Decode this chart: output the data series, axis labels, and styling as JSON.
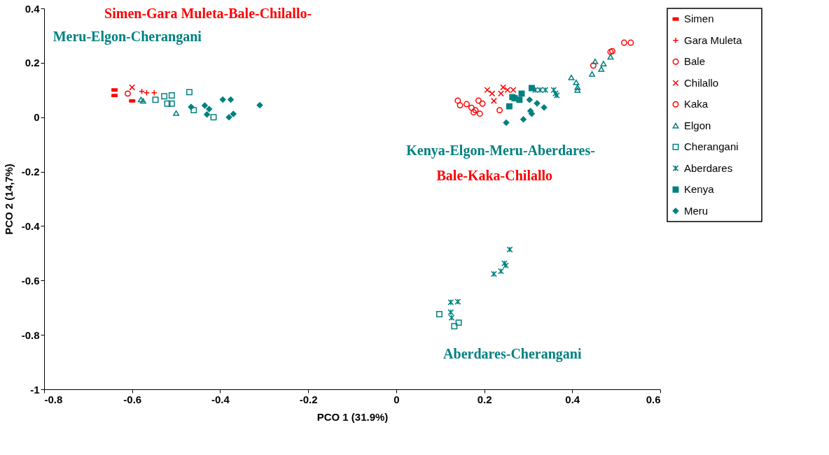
{
  "chart_data": {
    "type": "scatter",
    "xlabel": "PCO 1 (31.9%)",
    "ylabel": "PCO 2 (14,7%)",
    "xlim": [
      -0.8,
      0.6
    ],
    "xticks": [
      -0.8,
      -0.6,
      -0.4,
      -0.2,
      0,
      0.2,
      0.4,
      0.6
    ],
    "ylim": [
      -1,
      0.4
    ],
    "yticks": [
      -1,
      -0.8,
      -0.6,
      -0.4,
      -0.2,
      0,
      0.2,
      0.4
    ],
    "grid": false,
    "legend": "right",
    "annotations": [
      "Simen-Gara Muleta-Bale-Chilallo-",
      "Meru-Elgon-Cherangani",
      "Kenya-Elgon-Meru-Aberdares-",
      "Bale-Kaka-Chilallo",
      "Aberdares-Cherangani"
    ],
    "series": [
      {
        "name": "Simen",
        "color": "#ff0000",
        "x": [
          -0.64,
          -0.64,
          -0.6
        ],
        "values": [
          0.1,
          0.08,
          0.06
        ]
      },
      {
        "name": "Gara Muleta",
        "color": "#ff0000",
        "marker": "cross",
        "x": [
          -0.578,
          -0.567,
          -0.55
        ],
        "values": [
          0.095,
          0.09,
          0.09
        ]
      },
      {
        "name": "Bale",
        "color": "#ff0000",
        "marker": "circle",
        "x": [
          -0.61,
          0.14,
          0.145,
          0.16,
          0.171,
          0.176,
          0.187,
          0.19,
          0.196,
          0.18,
          0.235
        ],
        "values": [
          0.087,
          0.061,
          0.044,
          0.048,
          0.035,
          0.018,
          0.061,
          0.013,
          0.05,
          0.026,
          0.026
        ]
      },
      {
        "name": "Chilallo",
        "color": "#ff0000",
        "x": [
          -0.6,
          0.207,
          0.218,
          0.243,
          0.253,
          0.266,
          0.238,
          0.222
        ],
        "values": [
          0.11,
          0.1,
          0.087,
          0.11,
          0.1,
          0.1,
          0.087,
          0.06
        ]
      },
      {
        "name": "Kaka",
        "color": "#ff0000",
        "marker": "circle",
        "x": [
          0.518,
          0.533,
          0.491,
          0.487,
          0.448
        ],
        "values": [
          0.274,
          0.274,
          0.243,
          0.24,
          0.19
        ]
      },
      {
        "name": "Elgon",
        "color": "#008080",
        "marker": "triangle",
        "x": [
          -0.58,
          -0.575,
          -0.5,
          0.398,
          0.409,
          0.412,
          0.412,
          0.445,
          0.452,
          0.466,
          0.471,
          0.487
        ],
        "values": [
          0.065,
          0.06,
          0.015,
          0.146,
          0.128,
          0.1,
          0.11,
          0.159,
          0.205,
          0.177,
          0.197,
          0.222
        ]
      },
      {
        "name": "Cherangani",
        "color": "#008080",
        "marker": "square",
        "x": [
          -0.547,
          -0.527,
          -0.51,
          -0.52,
          -0.51,
          -0.47,
          -0.46,
          -0.415,
          0.098,
          0.132,
          0.142
        ],
        "values": [
          0.064,
          0.077,
          0.08,
          0.05,
          0.05,
          0.092,
          0.026,
          0.0,
          -0.724,
          -0.768,
          -0.755
        ]
      },
      {
        "name": "Aberdares",
        "color": "#008080",
        "x": [
          0.316,
          0.327,
          0.339,
          0.358,
          0.365,
          0.362,
          0.258,
          0.246,
          0.249,
          0.238,
          0.222,
          0.124,
          0.14,
          0.124,
          0.126
        ],
        "values": [
          0.1,
          0.1,
          0.1,
          0.1,
          0.08,
          0.087,
          -0.486,
          -0.537,
          -0.545,
          -0.566,
          -0.576,
          -0.68,
          -0.678,
          -0.717,
          -0.737
        ]
      },
      {
        "name": "Kenya",
        "color": "#008080",
        "x": [
          0.308,
          0.269,
          0.285,
          0.28,
          0.257,
          0.264
        ],
        "values": [
          0.107,
          0.07,
          0.087,
          0.064,
          0.04,
          0.074
        ]
      },
      {
        "name": "Meru",
        "color": "#008080",
        "marker": "diamond",
        "x": [
          -0.466,
          -0.435,
          -0.425,
          -0.43,
          -0.394,
          -0.376,
          -0.38,
          -0.37,
          -0.31,
          0.303,
          0.32,
          0.336,
          0.305,
          0.308,
          0.289,
          0.25
        ],
        "values": [
          0.038,
          0.043,
          0.03,
          0.01,
          0.065,
          0.065,
          0.0,
          0.012,
          0.044,
          0.064,
          0.051,
          0.036,
          0.023,
          0.013,
          -0.008,
          -0.02
        ]
      }
    ]
  }
}
